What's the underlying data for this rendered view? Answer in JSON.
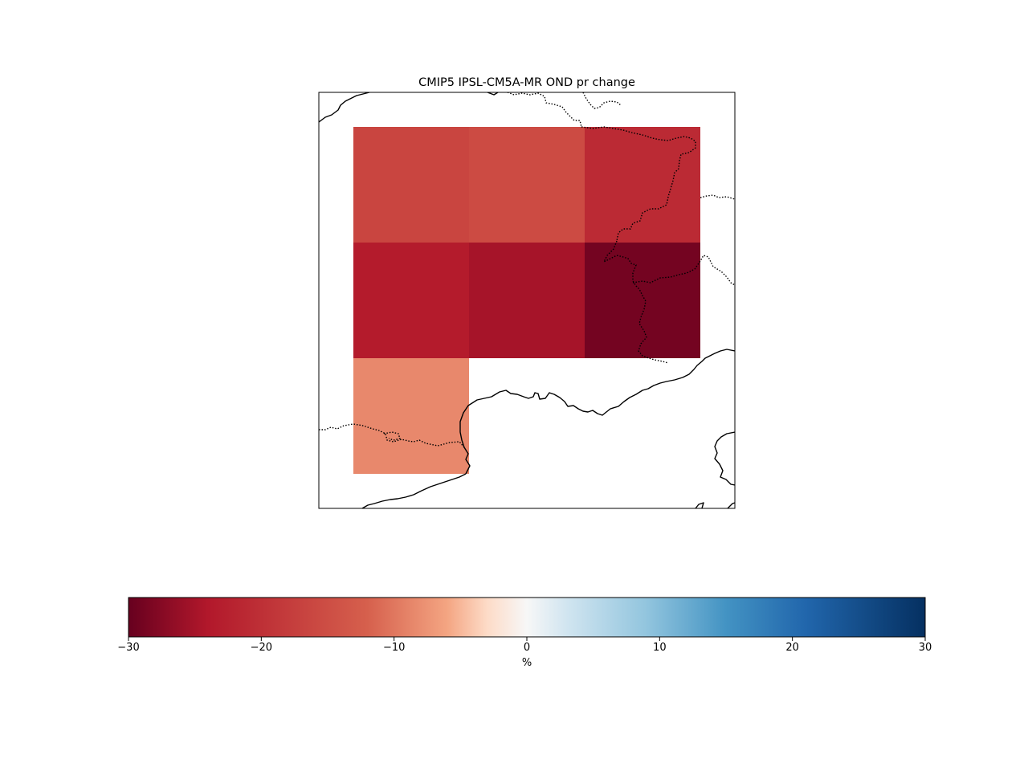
{
  "title": "CMIP5 IPSL-CM5A-MR OND pr change",
  "grid_cells": [
    {
      "row": 0,
      "col": 0,
      "value": -16.5
    },
    {
      "row": 0,
      "col": 1,
      "value": -15.5
    },
    {
      "row": 0,
      "col": 2,
      "value": -21.0
    },
    {
      "row": 1,
      "col": 0,
      "value": -23.5
    },
    {
      "row": 1,
      "col": 1,
      "value": -25.0
    },
    {
      "row": 1,
      "col": 2,
      "value": -29.0
    },
    {
      "row": 2,
      "col": 0,
      "value": -8.5
    }
  ],
  "colorbar": {
    "cmap": "RdBu",
    "vmin": -30,
    "vmax": 30,
    "ticks": [
      "−30",
      "−20",
      "−10",
      "0",
      "10",
      "20",
      "30"
    ],
    "tick_values": [
      -30,
      -20,
      -10,
      0,
      10,
      20,
      30
    ],
    "label": "%"
  }
}
